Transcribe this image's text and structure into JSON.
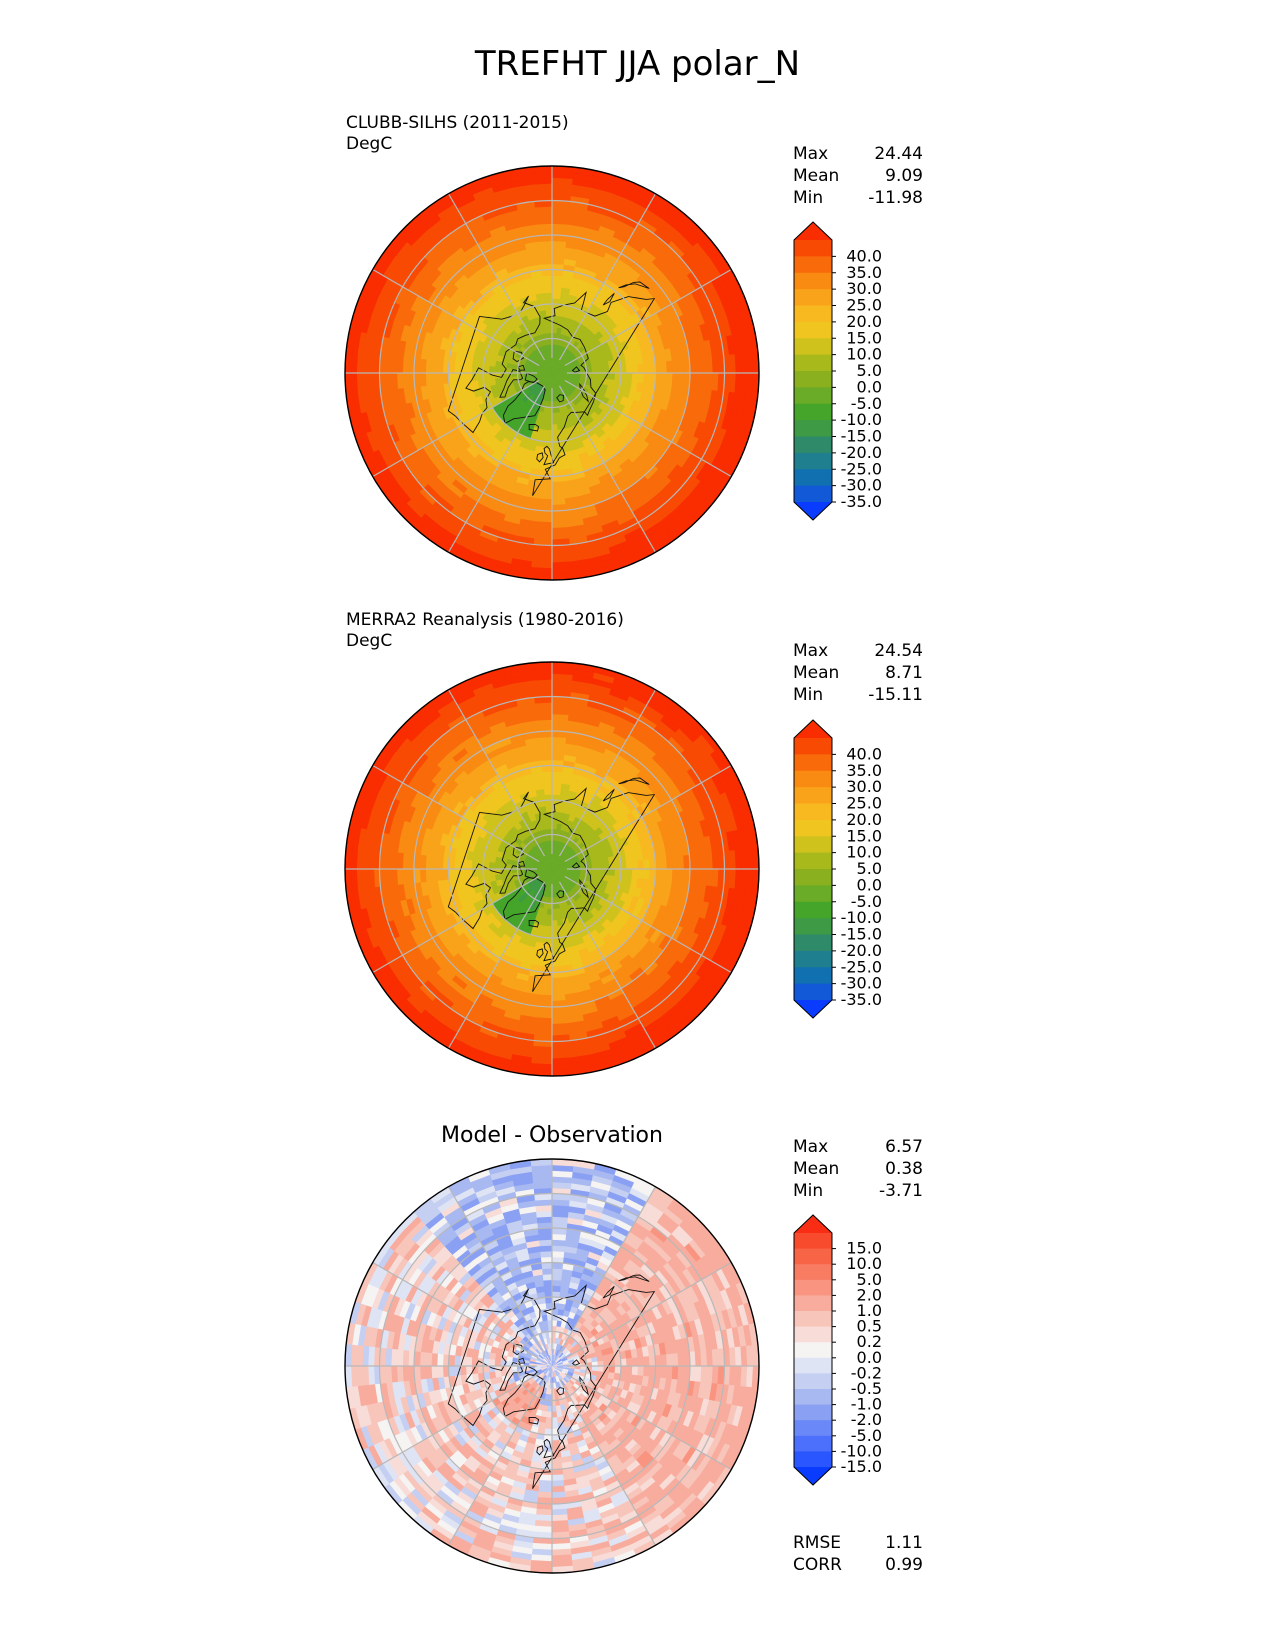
{
  "title": "TREFHT JJA polar_N",
  "colors": {
    "abs_scale": [
      "#0a3cff",
      "#1159d6",
      "#1170b0",
      "#1f7f8f",
      "#2f8a6a",
      "#3f9a45",
      "#44a52a",
      "#6aab28",
      "#8aaf1f",
      "#a8b91c",
      "#cfc21d",
      "#f0c51f",
      "#f8b820",
      "#f9a31a",
      "#f98a12",
      "#f96a0a",
      "#f94a04",
      "#f92d00"
    ],
    "diff_scale": [
      "#0a3cff",
      "#2a56ff",
      "#4c70fb",
      "#6a88f7",
      "#8aa0f3",
      "#a8b8f0",
      "#c4cff2",
      "#dfe4f5",
      "#f6f3f3",
      "#f8dcd8",
      "#f8c5bb",
      "#f8ac9d",
      "#f8947f",
      "#f87c62",
      "#f86446",
      "#f84a2c",
      "#f82d14"
    ]
  },
  "panels": [
    {
      "title_line1": "CLUBB-SILHS (2011-2015)",
      "title_line2": "DegC",
      "stats": {
        "max_label": "Max",
        "max": "24.44",
        "mean_label": "Mean",
        "mean": "9.09",
        "min_label": "Min",
        "min": "-11.98"
      }
    },
    {
      "title_line1": "MERRA2 Reanalysis (1980-2016)",
      "title_line2": "DegC",
      "stats": {
        "max_label": "Max",
        "max": "24.54",
        "mean_label": "Mean",
        "mean": "8.71",
        "min_label": "Min",
        "min": "-15.11"
      }
    },
    {
      "title": "Model - Observation",
      "stats": {
        "max_label": "Max",
        "max": "6.57",
        "mean_label": "Mean",
        "mean": "0.38",
        "min_label": "Min",
        "min": "-3.71"
      },
      "metrics": {
        "rmse_label": "RMSE",
        "rmse": "1.11",
        "corr_label": "CORR",
        "corr": "0.99"
      }
    }
  ],
  "chart_data": [
    {
      "type": "heatmap",
      "projection": "north polar stereographic",
      "title": "CLUBB-SILHS (2011-2015)",
      "units": "DegC",
      "colorbar_ticks": [
        "40.0",
        "35.0",
        "30.0",
        "25.0",
        "20.0",
        "15.0",
        "10.0",
        "5.0",
        "0.0",
        "-5.0",
        "-10.0",
        "-15.0",
        "-20.0",
        "-25.0",
        "-30.0",
        "-35.0"
      ],
      "colorbar_extend": "both",
      "stats": {
        "max": 24.44,
        "mean": 9.09,
        "min": -11.98
      }
    },
    {
      "type": "heatmap",
      "projection": "north polar stereographic",
      "title": "MERRA2 Reanalysis (1980-2016)",
      "units": "DegC",
      "colorbar_ticks": [
        "40.0",
        "35.0",
        "30.0",
        "25.0",
        "20.0",
        "15.0",
        "10.0",
        "5.0",
        "0.0",
        "-5.0",
        "-10.0",
        "-15.0",
        "-20.0",
        "-25.0",
        "-30.0",
        "-35.0"
      ],
      "colorbar_extend": "both",
      "stats": {
        "max": 24.54,
        "mean": 8.71,
        "min": -15.11
      }
    },
    {
      "type": "heatmap",
      "projection": "north polar stereographic",
      "title": "Model - Observation",
      "colorbar_ticks": [
        "15.0",
        "10.0",
        "5.0",
        "2.0",
        "1.0",
        "0.5",
        "0.2",
        "0.0",
        "-0.2",
        "-0.5",
        "-1.0",
        "-2.0",
        "-5.0",
        "-10.0",
        "-15.0"
      ],
      "colorbar_extend": "both",
      "stats": {
        "max": 6.57,
        "mean": 0.38,
        "min": -3.71
      },
      "metrics": {
        "rmse": 1.11,
        "corr": 0.99
      }
    }
  ]
}
